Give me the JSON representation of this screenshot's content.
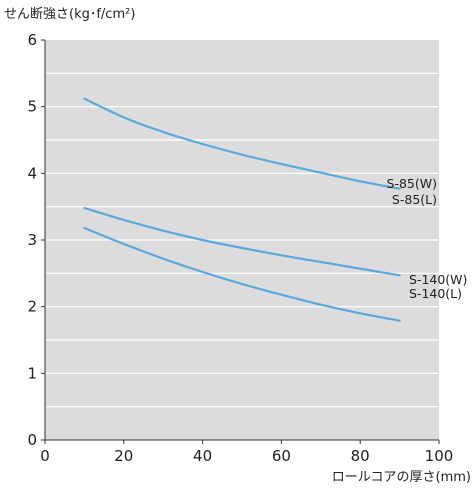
{
  "chart_data": {
    "type": "line",
    "title": "",
    "ylabel": "せん断強さ(kg･f/cm²)",
    "xlabel": "ロールコアの厚さ(mm)",
    "xlim": [
      0,
      100
    ],
    "ylim": [
      0,
      6
    ],
    "xticks": [
      "0",
      "20",
      "40",
      "60",
      "80",
      "100"
    ],
    "yticks": [
      "0",
      "1",
      "2",
      "3",
      "4",
      "5",
      "6"
    ],
    "grid": true,
    "plot_background": "#dcdcdc",
    "line_color": "#5aa9dc",
    "series": [
      {
        "name": "S-85(W)",
        "x": [
          10,
          20,
          30,
          40,
          50,
          60,
          70,
          80,
          90
        ],
        "y": [
          5.12,
          4.84,
          4.62,
          4.44,
          4.28,
          4.14,
          4.01,
          3.88,
          3.77
        ]
      },
      {
        "name": "S-85(L)",
        "x": [
          10,
          20,
          30,
          40,
          50,
          60,
          70,
          80,
          90
        ],
        "y": [
          5.12,
          4.84,
          4.62,
          4.44,
          4.28,
          4.14,
          4.01,
          3.88,
          3.77
        ]
      },
      {
        "name": "S-140(W)",
        "x": [
          10,
          20,
          30,
          40,
          50,
          60,
          70,
          80,
          90
        ],
        "y": [
          3.48,
          3.3,
          3.14,
          3.0,
          2.88,
          2.77,
          2.67,
          2.57,
          2.47
        ]
      },
      {
        "name": "S-140(L)",
        "x": [
          10,
          20,
          30,
          40,
          50,
          60,
          70,
          80,
          90
        ],
        "y": [
          3.18,
          2.94,
          2.72,
          2.52,
          2.34,
          2.18,
          2.03,
          1.9,
          1.79
        ]
      }
    ]
  }
}
